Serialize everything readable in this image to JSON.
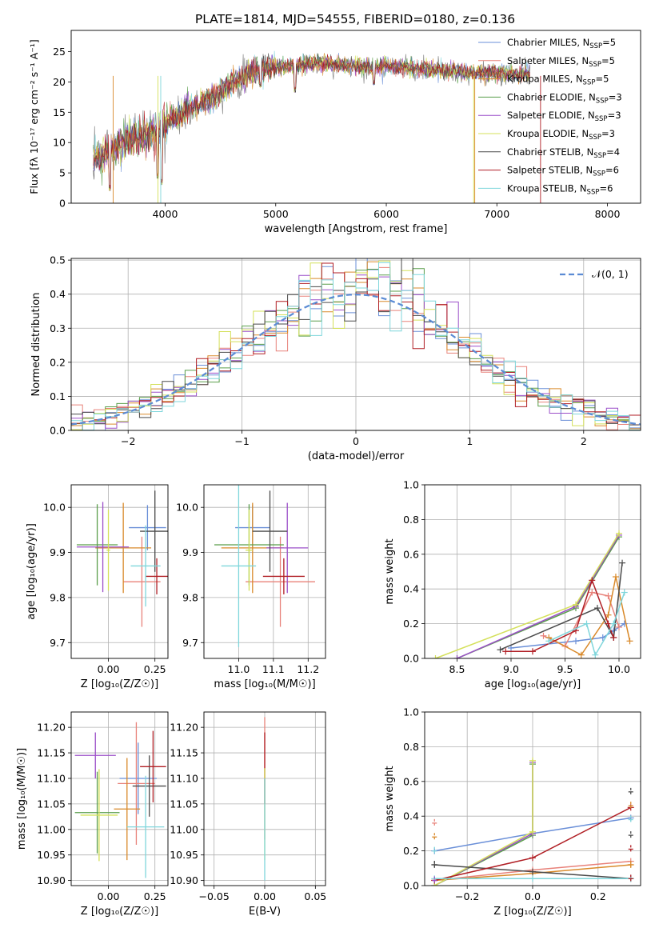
{
  "figure": {
    "title": "PLATE=1814, MJD=54555, FIBERID=0180, z=0.136"
  },
  "chart_data": [
    {
      "id": "spectrum",
      "type": "line",
      "xlabel": "wavelength [Angstrom, rest frame]",
      "ylabel": "Flux [fλ 10⁻¹⁷ erg cm⁻² s⁻¹ A⁻¹]",
      "xlim": [
        3150,
        8300
      ],
      "ylim": [
        0,
        28.5
      ],
      "xticks": [
        4000,
        5000,
        6000,
        7000,
        8000
      ],
      "yticks": [
        0,
        5,
        10,
        15,
        20,
        25
      ],
      "grid": false,
      "legend_position": "top-right",
      "series": [
        {
          "name": "Chabrier MILES, N_SSP=5",
          "color": "#6a8fd8"
        },
        {
          "name": "Salpeter MILES, N_SSP=5",
          "color": "#e8827a"
        },
        {
          "name": "Kroupa MILES, N_SSP=5",
          "color": "#d98a2b"
        },
        {
          "name": "Chabrier ELODIE, N_SSP=3",
          "color": "#5a9e4b"
        },
        {
          "name": "Salpeter ELODIE, N_SSP=3",
          "color": "#9b4fc9"
        },
        {
          "name": "Kroupa ELODIE, N_SSP=3",
          "color": "#d4e05a"
        },
        {
          "name": "Chabrier STELIB, N_SSP=4",
          "color": "#4a4a4a"
        },
        {
          "name": "Salpeter STELIB, N_SSP=6",
          "color": "#b01e24"
        },
        {
          "name": "Kroupa STELIB, N_SSP=6",
          "color": "#7fd6db"
        }
      ],
      "shape_points": [
        [
          3350,
          7.2
        ],
        [
          3500,
          8.6
        ],
        [
          3700,
          10.6
        ],
        [
          3900,
          11.5
        ],
        [
          4000,
          13
        ],
        [
          4200,
          15.5
        ],
        [
          4400,
          17.2
        ],
        [
          4600,
          19.5
        ],
        [
          4800,
          21.8
        ],
        [
          5000,
          22.5
        ],
        [
          5200,
          22.8
        ],
        [
          5400,
          23.2
        ],
        [
          5600,
          22.8
        ],
        [
          5800,
          22.5
        ],
        [
          6000,
          22.6
        ],
        [
          6200,
          22.4
        ],
        [
          6400,
          22.0
        ],
        [
          6600,
          21.8
        ],
        [
          6800,
          21.4
        ],
        [
          7000,
          21.6
        ],
        [
          7200,
          21.2
        ],
        [
          7300,
          21.4
        ]
      ],
      "dips": [
        [
          3500,
          2
        ],
        [
          3930,
          4
        ],
        [
          3968,
          3
        ],
        [
          4305,
          15.5
        ],
        [
          4861,
          19
        ],
        [
          5175,
          18.2
        ],
        [
          5890,
          19.4
        ]
      ]
    },
    {
      "id": "residuals",
      "type": "bar",
      "xlabel": "(data-model)/error",
      "ylabel": "Normed distribution",
      "xlim": [
        -2.5,
        2.5
      ],
      "ylim": [
        0,
        0.505
      ],
      "xticks": [
        -2,
        -1,
        0,
        1,
        2
      ],
      "yticks": [
        0,
        0.1,
        0.2,
        0.3,
        0.4,
        0.5
      ],
      "grid": true,
      "bin_width": 0.1,
      "legend": [
        {
          "name": "𝒩(0, 1)",
          "color": "#5b8bd4"
        }
      ],
      "legend_position": "top-right"
    },
    {
      "id": "age_vs_Z",
      "type": "scatter",
      "xlabel": "Z [log₁₀(Z/Z☉)]",
      "ylabel": "age  [log₁₀(age/yr)]",
      "xlim": [
        -0.2,
        0.32
      ],
      "ylim": [
        9.665,
        10.05
      ],
      "xticks": [
        0,
        0.25
      ],
      "yticks": [
        9.7,
        9.8,
        9.9,
        10.0
      ],
      "grid": true,
      "points": [
        {
          "x": 0.21,
          "y": 9.955,
          "ex": 0.1,
          "ey": 0.05,
          "color": "#6a8fd8"
        },
        {
          "x": 0.18,
          "y": 9.835,
          "ex": 0.1,
          "ey": 0.1,
          "color": "#e8827a"
        },
        {
          "x": 0.08,
          "y": 9.91,
          "ex": 0.15,
          "ey": 0.1,
          "color": "#d98a2b"
        },
        {
          "x": -0.06,
          "y": 9.917,
          "ex": 0.11,
          "ey": 0.09,
          "color": "#5a9e4b"
        },
        {
          "x": -0.03,
          "y": 9.912,
          "ex": 0.14,
          "ey": 0.1,
          "color": "#9b4fc9"
        },
        {
          "x": 0.0,
          "y": 9.905,
          "ex": 0.01,
          "ey": 0.09,
          "color": "#d4e05a"
        },
        {
          "x": 0.25,
          "y": 9.947,
          "ex": 0.08,
          "ey": 0.09,
          "color": "#4a4a4a"
        },
        {
          "x": 0.26,
          "y": 9.847,
          "ex": 0.06,
          "ey": 0.04,
          "color": "#b01e24"
        },
        {
          "x": 0.2,
          "y": 9.87,
          "ex": 0.08,
          "ey": 0.09,
          "color": "#7fd6db"
        }
      ]
    },
    {
      "id": "age_vs_mass",
      "type": "scatter",
      "xlabel": "mass [log₁₀(M/M☉)]",
      "ylabel": "",
      "xlim": [
        10.9,
        11.25
      ],
      "ylim": [
        9.665,
        10.05
      ],
      "xticks": [
        11.0,
        11.1,
        11.2
      ],
      "yticks": [
        9.7,
        9.8,
        9.9,
        10.0
      ],
      "grid": true,
      "points": [
        {
          "x": 11.04,
          "y": 9.955,
          "ex": 0.05,
          "ey": 0.05,
          "color": "#6a8fd8"
        },
        {
          "x": 11.12,
          "y": 9.835,
          "ex": 0.1,
          "ey": 0.1,
          "color": "#e8827a"
        },
        {
          "x": 11.04,
          "y": 9.91,
          "ex": 0.09,
          "ey": 0.1,
          "color": "#d98a2b"
        },
        {
          "x": 11.03,
          "y": 9.917,
          "ex": 0.1,
          "ey": 0.09,
          "color": "#5a9e4b"
        },
        {
          "x": 11.14,
          "y": 9.91,
          "ex": 0.06,
          "ey": 0.1,
          "color": "#9b4fc9"
        },
        {
          "x": 11.03,
          "y": 9.905,
          "ex": 0.01,
          "ey": 0.09,
          "color": "#d4e05a"
        },
        {
          "x": 11.09,
          "y": 9.947,
          "ex": 0.05,
          "ey": 0.09,
          "color": "#4a4a4a"
        },
        {
          "x": 11.13,
          "y": 9.847,
          "ex": 0.06,
          "ey": 0.04,
          "color": "#b01e24"
        },
        {
          "x": 11.0,
          "y": 9.87,
          "ex": 0.05,
          "ey": 0.18,
          "color": "#7fd6db"
        }
      ]
    },
    {
      "id": "mass_weight_vs_age",
      "type": "line",
      "xlabel": "age  [log₁₀(age/yr)]",
      "ylabel": "mass weight",
      "xlim": [
        8.2,
        10.2
      ],
      "ylim": [
        0,
        1
      ],
      "xticks": [
        8.5,
        9.0,
        9.5,
        10.0
      ],
      "yticks": [
        0,
        0.2,
        0.4,
        0.6,
        0.8,
        1.0
      ],
      "grid": true,
      "series": [
        {
          "color": "#6a8fd8",
          "x": [
            9.0,
            9.6,
            9.85,
            9.95,
            10.05
          ],
          "y": [
            0.06,
            0.1,
            0.12,
            0.16,
            0.2
          ]
        },
        {
          "color": "#e8827a",
          "x": [
            9.3,
            9.5,
            9.75,
            9.9,
            10.0
          ],
          "y": [
            0.13,
            0.07,
            0.38,
            0.36,
            0.18
          ]
        },
        {
          "color": "#d98a2b",
          "x": [
            9.35,
            9.65,
            9.9,
            9.97,
            10.1
          ],
          "y": [
            0.12,
            0.02,
            0.25,
            0.47,
            0.1
          ]
        },
        {
          "color": "#5a9e4b",
          "x": [
            8.5,
            9.6,
            10.0
          ],
          "y": [
            0.0,
            0.29,
            0.7
          ]
        },
        {
          "color": "#9b4fc9",
          "x": [
            8.5,
            9.6,
            10.0
          ],
          "y": [
            0.0,
            0.3,
            0.71
          ]
        },
        {
          "color": "#d4e05a",
          "x": [
            8.3,
            9.6,
            10.0
          ],
          "y": [
            0.0,
            0.31,
            0.72
          ]
        },
        {
          "color": "#4a4a4a",
          "x": [
            8.9,
            9.8,
            9.95,
            10.03
          ],
          "y": [
            0.05,
            0.29,
            0.12,
            0.55
          ]
        },
        {
          "color": "#b01e24",
          "x": [
            8.95,
            9.2,
            9.6,
            9.75,
            9.9,
            9.95
          ],
          "y": [
            0.04,
            0.04,
            0.16,
            0.45,
            0.2,
            0.12
          ]
        },
        {
          "color": "#7fd6db",
          "x": [
            9.35,
            9.7,
            9.78,
            9.95,
            10.05
          ],
          "y": [
            0.1,
            0.2,
            0.02,
            0.2,
            0.38
          ]
        }
      ]
    },
    {
      "id": "mass_vs_Z",
      "type": "scatter",
      "xlabel": "Z [log₁₀(Z/Z☉)]",
      "ylabel": "mass [log₁₀(M/M☉)]",
      "xlim": [
        -0.2,
        0.32
      ],
      "ylim": [
        10.89,
        11.23
      ],
      "xticks": [
        0,
        0.25
      ],
      "yticks": [
        10.9,
        10.95,
        11.0,
        11.05,
        11.1,
        11.15,
        11.2
      ],
      "grid": true,
      "points": [
        {
          "x": 0.16,
          "y": 11.1,
          "ex": 0.1,
          "ey": 0.07,
          "color": "#6a8fd8"
        },
        {
          "x": 0.15,
          "y": 11.09,
          "ex": 0.1,
          "ey": 0.12,
          "color": "#e8827a"
        },
        {
          "x": 0.1,
          "y": 11.04,
          "ex": 0.07,
          "ey": 0.1,
          "color": "#d98a2b"
        },
        {
          "x": -0.06,
          "y": 11.033,
          "ex": 0.12,
          "ey": 0.08,
          "color": "#5a9e4b"
        },
        {
          "x": -0.07,
          "y": 11.145,
          "ex": 0.11,
          "ey": 0.045,
          "color": "#9b4fc9"
        },
        {
          "x": -0.05,
          "y": 11.028,
          "ex": 0.1,
          "ey": 0.09,
          "color": "#d4e05a"
        },
        {
          "x": 0.22,
          "y": 11.085,
          "ex": 0.09,
          "ey": 0.06,
          "color": "#4a4a4a"
        },
        {
          "x": 0.24,
          "y": 11.123,
          "ex": 0.07,
          "ey": 0.07,
          "color": "#b01e24"
        },
        {
          "x": 0.2,
          "y": 11.005,
          "ex": 0.1,
          "ey": 0.1,
          "color": "#7fd6db"
        }
      ]
    },
    {
      "id": "mass_vs_ebv",
      "type": "scatter",
      "xlabel": "E(B-V)",
      "ylabel": "",
      "xlim": [
        -0.06,
        0.06
      ],
      "ylim": [
        10.89,
        11.23
      ],
      "xticks": [
        -0.05,
        0,
        0.05
      ],
      "yticks": [
        10.9,
        10.95,
        11.0,
        11.05,
        11.1,
        11.15,
        11.2
      ],
      "grid": true,
      "points": [
        {
          "x": 0,
          "y": 11.1,
          "ex": 0,
          "ey": 0.12,
          "color": "#e8827a"
        },
        {
          "x": 0,
          "y": 11.12,
          "ex": 0,
          "ey": 0.07,
          "color": "#b01e24"
        },
        {
          "x": 0,
          "y": 11.03,
          "ex": 0,
          "ey": 0.09,
          "color": "#d4e05a"
        },
        {
          "x": 0,
          "y": 11.0,
          "ex": 0,
          "ey": 0.1,
          "color": "#7fd6db"
        }
      ]
    },
    {
      "id": "mass_weight_vs_Z",
      "type": "line",
      "xlabel": "Z [log₁₀(Z/Z☉)]",
      "ylabel": "mass weight",
      "xlim": [
        -0.33,
        0.33
      ],
      "ylim": [
        0,
        1
      ],
      "xticks": [
        -0.2,
        0,
        0.2
      ],
      "yticks": [
        0,
        0.2,
        0.4,
        0.6,
        0.8,
        1.0
      ],
      "grid": true,
      "series": [
        {
          "color": "#6a8fd8",
          "x": [
            -0.3,
            0.0,
            0.3
          ],
          "y": [
            0.2,
            0.3,
            0.39
          ]
        },
        {
          "color": "#e8827a",
          "x": [
            -0.3,
            0.0,
            0.3
          ],
          "y": [
            0.03,
            0.09,
            0.14
          ]
        },
        {
          "color": "#d98a2b",
          "x": [
            -0.3,
            0.0,
            0.3
          ],
          "y": [
            0.03,
            0.07,
            0.12
          ]
        },
        {
          "color": "#5a9e4b",
          "x": [
            -0.3,
            0.0,
            0.0
          ],
          "y": [
            0.0,
            0.29,
            0.7
          ]
        },
        {
          "color": "#9b4fc9",
          "x": [
            -0.3,
            0.0,
            0.0
          ],
          "y": [
            0.0,
            0.3,
            0.71
          ]
        },
        {
          "color": "#d4e05a",
          "x": [
            -0.3,
            0.0,
            0.0
          ],
          "y": [
            0.0,
            0.31,
            0.72
          ]
        },
        {
          "color": "#4a4a4a",
          "x": [
            -0.3,
            0.0,
            0.3
          ],
          "y": [
            0.12,
            0.08,
            0.04
          ]
        },
        {
          "color": "#b01e24",
          "x": [
            -0.3,
            0.0,
            0.3
          ],
          "y": [
            0.03,
            0.16,
            0.45
          ]
        },
        {
          "color": "#7fd6db",
          "x": [
            -0.3,
            0.0,
            0.3
          ],
          "y": [
            0.04,
            0.04,
            0.04
          ]
        }
      ],
      "edge_errbars": {
        "left_x": -0.3,
        "left": [
          {
            "y": 0.36,
            "color": "#e8827a"
          },
          {
            "y": 0.28,
            "color": "#d98a2b"
          },
          {
            "y": 0.2,
            "color": "#7fd6db"
          },
          {
            "y": 0.12,
            "color": "#4a4a4a"
          },
          {
            "y": 0.03,
            "color": "#9b4fc9"
          }
        ],
        "right_x": 0.3,
        "right": [
          {
            "y": 0.54,
            "color": "#4a4a4a"
          },
          {
            "y": 0.46,
            "color": "#d98a2b"
          },
          {
            "y": 0.38,
            "color": "#7fd6db"
          },
          {
            "y": 0.29,
            "color": "#4a4a4a"
          },
          {
            "y": 0.21,
            "color": "#b01e24"
          },
          {
            "y": 0.12,
            "color": "#d98a2b"
          },
          {
            "y": 0.04,
            "color": "#b01e24"
          }
        ]
      }
    }
  ]
}
